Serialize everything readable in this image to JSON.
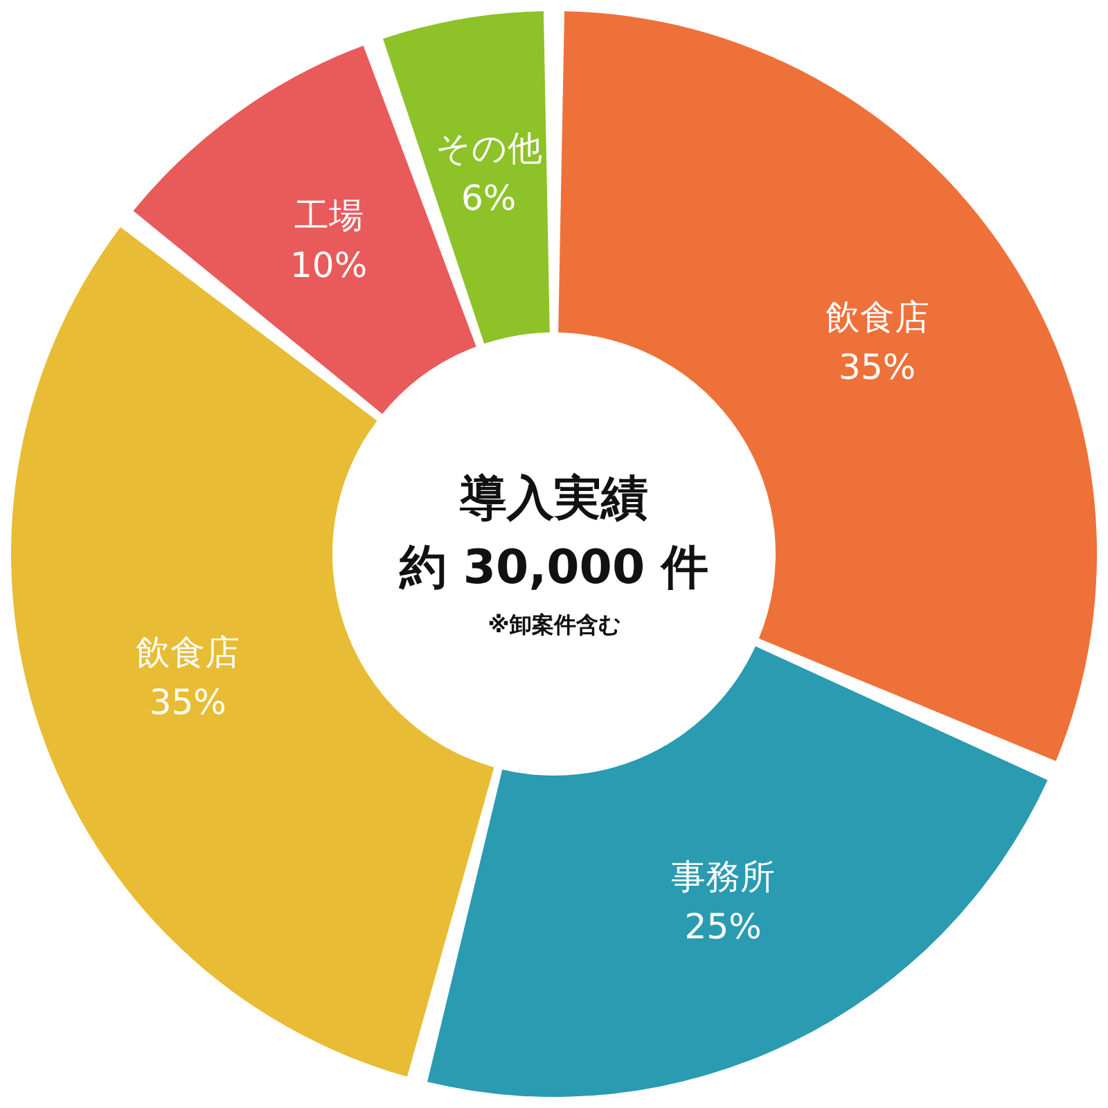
{
  "chart_data": {
    "type": "donut",
    "title": "導入実績",
    "subtitle": "約 30,000 件",
    "annotations": [
      "※卸案件含む"
    ],
    "categories": [
      "飲食店",
      "事務所",
      "飲食店",
      "工場",
      "その他"
    ],
    "values": [
      35,
      25,
      35,
      10,
      6
    ],
    "value_labels": [
      "35%",
      "25%",
      "35%",
      "10%",
      "6%"
    ],
    "colors": [
      "#ee7139",
      "#2a9bb1",
      "#e8bc34",
      "#e95a5a",
      "#8dc228"
    ],
    "legend": false
  }
}
